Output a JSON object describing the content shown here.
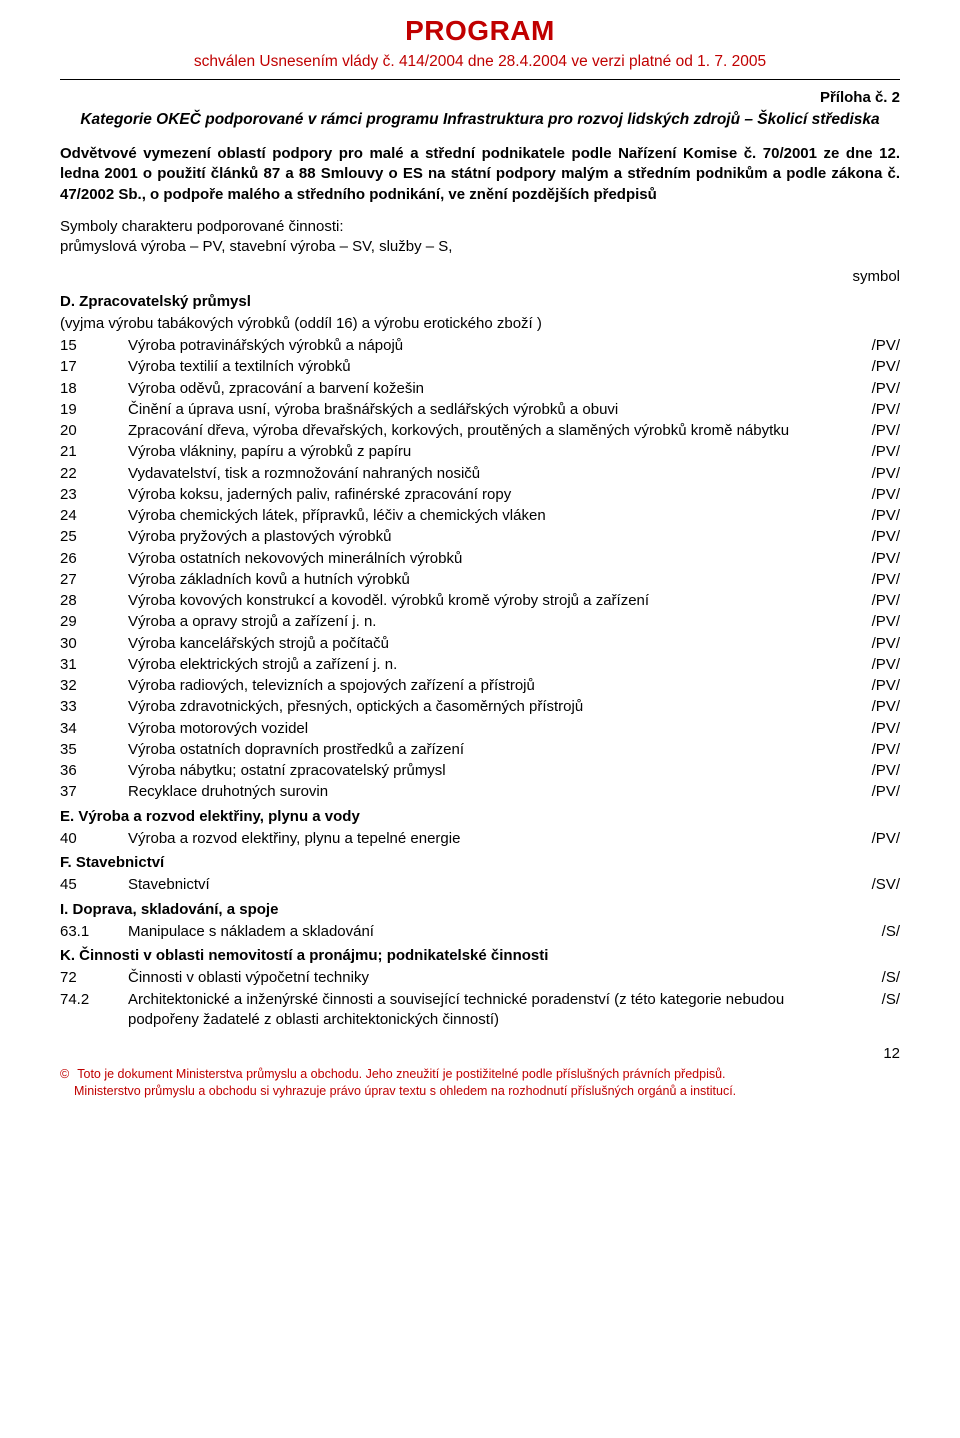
{
  "header": {
    "title": "PROGRAM",
    "subtitle": "schválen Usnesením vlády č. 414/2004 dne 28.4.2004 ve verzi platné od 1. 7. 2005"
  },
  "priloha": "Příloha č. 2",
  "annexTitle": "Kategorie OKEČ podporované v rámci programu Infrastruktura pro rozvoj lidských zdrojů – Školicí střediska",
  "intro": "Odvětvové vymezení oblastí podpory pro malé a střední podnikatele  podle Nařízení Komise č. 70/2001 ze dne 12. ledna 2001 o použití článků 87 a 88 Smlouvy o ES na státní podpory malým a středním podnikům a podle zákona č. 47/2002 Sb., o podpoře malého a středního podnikání, ve znění pozdějších předpisů",
  "symbolsPara": "Symboly charakteru podporované činnosti:\nprůmyslová výroba – PV, stavební výroba – SV, služby – S,",
  "symbolLabel": "symbol",
  "sections": {
    "D": {
      "heading": "D. Zpracovatelský průmysl",
      "note": "(vyjma výrobu tabákových výrobků (oddíl 16) a výrobu erotického zboží )",
      "rows": [
        {
          "code": "15",
          "desc": "Výroba potravinářských výrobků a nápojů",
          "sym": "/PV/"
        },
        {
          "code": "17",
          "desc": "Výroba textilií a textilních výrobků",
          "sym": "/PV/"
        },
        {
          "code": "18",
          "desc": "Výroba oděvů, zpracování a barvení kožešin",
          "sym": "/PV/"
        },
        {
          "code": "19",
          "desc": "Činění a úprava usní, výroba brašnářských a sedlářských výrobků a obuvi",
          "sym": "/PV/"
        },
        {
          "code": "20",
          "desc": "Zpracování dřeva, výroba dřevařských, korkových, proutěných a slaměných výrobků kromě nábytku",
          "sym": "/PV/"
        },
        {
          "code": "21",
          "desc": "Výroba vlákniny, papíru a výrobků z papíru",
          "sym": "/PV/"
        },
        {
          "code": "22",
          "desc": "Vydavatelství, tisk a rozmnožování nahraných nosičů",
          "sym": "/PV/"
        },
        {
          "code": "23",
          "desc": "Výroba koksu, jaderných paliv, rafinérské zpracování ropy",
          "sym": "/PV/"
        },
        {
          "code": "24",
          "desc": "Výroba chemických látek, přípravků, léčiv a chemických vláken",
          "sym": "/PV/"
        },
        {
          "code": "25",
          "desc": "Výroba pryžových a plastových výrobků",
          "sym": "/PV/"
        },
        {
          "code": "26",
          "desc": "Výroba ostatních nekovových minerálních výrobků",
          "sym": "/PV/"
        },
        {
          "code": "27",
          "desc": "Výroba základních kovů a hutních výrobků",
          "sym": "/PV/"
        },
        {
          "code": "28",
          "desc": "Výroba kovových konstrukcí a kovoděl. výrobků kromě výroby strojů a zařízení",
          "sym": "/PV/"
        },
        {
          "code": "29",
          "desc": "Výroba a opravy strojů a zařízení j. n.",
          "sym": "/PV/"
        },
        {
          "code": "30",
          "desc": "Výroba kancelářských strojů a počítačů",
          "sym": "/PV/"
        },
        {
          "code": "31",
          "desc": "Výroba elektrických strojů a zařízení j. n.",
          "sym": "/PV/"
        },
        {
          "code": "32",
          "desc": "Výroba radiových, televizních a spojových zařízení a přístrojů",
          "sym": "/PV/"
        },
        {
          "code": "33",
          "desc": "Výroba zdravotnických, přesných, optických a časoměrných přístrojů",
          "sym": "/PV/"
        },
        {
          "code": "34",
          "desc": "Výroba motorových vozidel",
          "sym": "/PV/"
        },
        {
          "code": "35",
          "desc": "Výroba ostatních dopravních prostředků a zařízení",
          "sym": "/PV/"
        },
        {
          "code": "36",
          "desc": "Výroba nábytku; ostatní zpracovatelský průmysl",
          "sym": "/PV/"
        },
        {
          "code": "37",
          "desc": "Recyklace druhotných surovin",
          "sym": "/PV/"
        }
      ]
    },
    "E": {
      "heading": "E. Výroba a rozvod elektřiny, plynu a vody",
      "rows": [
        {
          "code": "40",
          "desc": "Výroba a rozvod elektřiny, plynu a tepelné energie",
          "sym": "/PV/"
        }
      ]
    },
    "F": {
      "heading": "F. Stavebnictví",
      "rows": [
        {
          "code": "45",
          "desc": "Stavebnictví",
          "sym": "/SV/"
        }
      ]
    },
    "I": {
      "heading": "I. Doprava, skladování, a spoje",
      "rows": [
        {
          "code": "63.1",
          "desc": "Manipulace s nákladem a skladování",
          "sym": "/S/"
        }
      ]
    },
    "K": {
      "heading": "K. Činnosti v oblasti nemovitostí a pronájmu; podnikatelské činnosti",
      "rows": [
        {
          "code": "72",
          "desc": "Činnosti v oblasti výpočetní techniky",
          "sym": "/S/"
        },
        {
          "code": "74.2",
          "desc": "Architektonické a inženýrské činnosti a související technické poradenství (z této kategorie nebudou podpořeny žadatelé z oblasti architektonických činností)",
          "sym": "/S/"
        }
      ]
    }
  },
  "pageNumber": "12",
  "footer": {
    "copy": "©",
    "line1": "Toto je dokument Ministerstva průmyslu a obchodu. Jeho zneužití je postižitelné podle příslušných právních předpisů.",
    "line2": "Ministerstvo průmyslu a obchodu si vyhrazuje právo úprav textu s ohledem na rozhodnutí příslušných orgánů a institucí."
  }
}
